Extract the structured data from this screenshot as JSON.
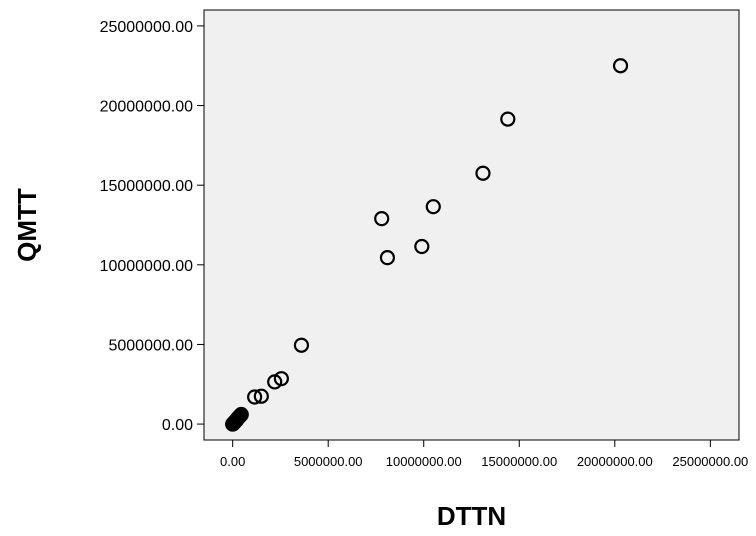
{
  "chart_data": {
    "type": "scatter",
    "xlabel": "DTTN",
    "ylabel": "QMTT",
    "xlim": [
      -1500000,
      26500000
    ],
    "ylim": [
      -1000000,
      26000000
    ],
    "xticks": [
      0,
      5000000,
      10000000,
      15000000,
      20000000,
      25000000
    ],
    "xtick_labels": [
      "0.00",
      "5000000.00",
      "10000000.00",
      "15000000.00",
      "20000000.00",
      "25000000.00"
    ],
    "yticks": [
      0,
      5000000,
      10000000,
      15000000,
      20000000,
      25000000
    ],
    "ytick_labels": [
      "0.00",
      "5000000.00",
      "10000000.00",
      "15000000.00",
      "20000000.00",
      "25000000.00"
    ],
    "grid": false,
    "plot_background": "#f0f0f0",
    "marker_color": "#000000",
    "points": [
      {
        "x": 0,
        "y": 0
      },
      {
        "x": 30000,
        "y": 20000
      },
      {
        "x": 60000,
        "y": 60000
      },
      {
        "x": 90000,
        "y": 110000
      },
      {
        "x": 120000,
        "y": 150000
      },
      {
        "x": 160000,
        "y": 200000
      },
      {
        "x": 200000,
        "y": 240000
      },
      {
        "x": 230000,
        "y": 300000
      },
      {
        "x": 260000,
        "y": 350000
      },
      {
        "x": 300000,
        "y": 400000
      },
      {
        "x": 340000,
        "y": 460000
      },
      {
        "x": 380000,
        "y": 510000
      },
      {
        "x": 420000,
        "y": 560000
      },
      {
        "x": 450000,
        "y": 600000
      },
      {
        "x": 1150000,
        "y": 1700000
      },
      {
        "x": 1500000,
        "y": 1750000
      },
      {
        "x": 2200000,
        "y": 2650000
      },
      {
        "x": 2550000,
        "y": 2850000
      },
      {
        "x": 3600000,
        "y": 4950000
      },
      {
        "x": 7800000,
        "y": 12900000
      },
      {
        "x": 8100000,
        "y": 10450000
      },
      {
        "x": 9900000,
        "y": 11150000
      },
      {
        "x": 10500000,
        "y": 13650000
      },
      {
        "x": 13100000,
        "y": 15750000
      },
      {
        "x": 14400000,
        "y": 19150000
      },
      {
        "x": 20300000,
        "y": 22500000
      }
    ]
  }
}
